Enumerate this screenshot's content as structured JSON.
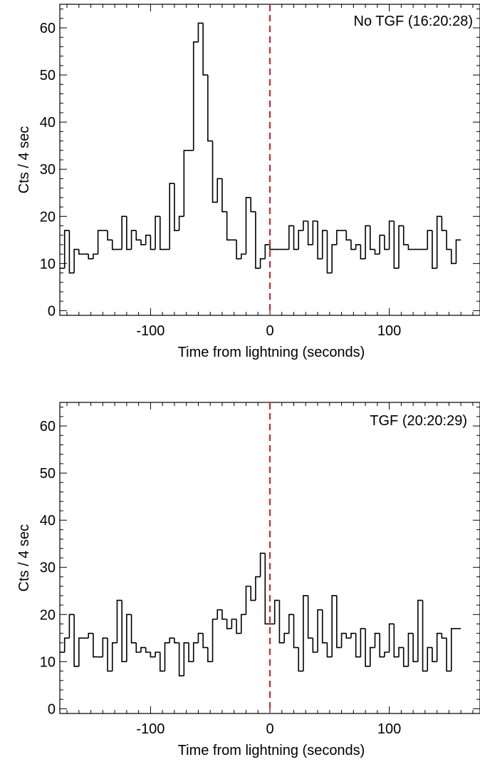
{
  "chart_data": [
    {
      "type": "step",
      "annotation": "No TGF (16:20:28)",
      "xlabel": "Time from lightning (seconds)",
      "ylabel": "Cts / 4 sec",
      "xlim": [
        -176,
        176
      ],
      "ylim": [
        -1,
        65
      ],
      "xticks": [
        -100,
        0,
        100
      ],
      "xtick_labels": [
        "-100",
        "0",
        "100"
      ],
      "yticks": [
        0,
        10,
        20,
        30,
        40,
        50,
        60
      ],
      "ytick_labels": [
        "0",
        "10",
        "20",
        "30",
        "40",
        "50",
        "60"
      ],
      "bin_width": 4,
      "x_start": -176,
      "values": [
        9,
        17,
        8,
        13,
        12,
        12,
        11,
        12,
        17,
        17,
        15,
        13,
        13,
        20,
        13,
        17,
        15,
        14,
        16,
        13,
        20,
        13,
        13,
        27,
        17,
        20,
        34,
        34,
        57,
        61,
        50,
        36,
        23,
        28,
        21,
        15,
        15,
        11,
        12,
        24,
        21,
        9,
        11,
        14,
        13,
        13,
        13,
        13,
        18,
        13,
        17,
        19,
        14,
        19,
        11,
        17,
        8,
        14,
        17,
        17,
        15,
        13,
        14,
        11,
        18,
        13,
        12,
        16,
        13,
        19,
        9,
        18,
        14,
        13,
        13,
        13,
        13,
        17,
        9,
        20,
        17,
        13,
        10,
        15
      ],
      "reference_line_x": 0,
      "reference_line_color": "#d62728",
      "line_color": "#000000",
      "grid": false
    },
    {
      "type": "step",
      "annotation": "TGF (20:20:29)",
      "xlabel": "Time from lightning (seconds)",
      "ylabel": "Cts / 4 sec",
      "xlim": [
        -176,
        176
      ],
      "ylim": [
        -1,
        65
      ],
      "xticks": [
        -100,
        0,
        100
      ],
      "xtick_labels": [
        "-100",
        "0",
        "100"
      ],
      "yticks": [
        0,
        10,
        20,
        30,
        40,
        50,
        60
      ],
      "ytick_labels": [
        "0",
        "10",
        "20",
        "30",
        "40",
        "50",
        "60"
      ],
      "bin_width": 4,
      "x_start": -176,
      "values": [
        12,
        15,
        20,
        9,
        15,
        15,
        16,
        11,
        11,
        15,
        8,
        14,
        23,
        10,
        20,
        14,
        12,
        13,
        12,
        11,
        12,
        8,
        14,
        15,
        14,
        7,
        14,
        10,
        14,
        16,
        13,
        10,
        19,
        21,
        19,
        17,
        19,
        16,
        20,
        26,
        23,
        28,
        33,
        18,
        18,
        23,
        14,
        16,
        20,
        13,
        8,
        24,
        15,
        12,
        21,
        14,
        11,
        24,
        13,
        16,
        15,
        16,
        11,
        17,
        9,
        13,
        16,
        11,
        12,
        18,
        11,
        13,
        9,
        16,
        10,
        23,
        8,
        13,
        10,
        16,
        15,
        8,
        17,
        17
      ],
      "reference_line_x": 0,
      "reference_line_color": "#d62728",
      "line_color": "#000000",
      "grid": false
    }
  ]
}
